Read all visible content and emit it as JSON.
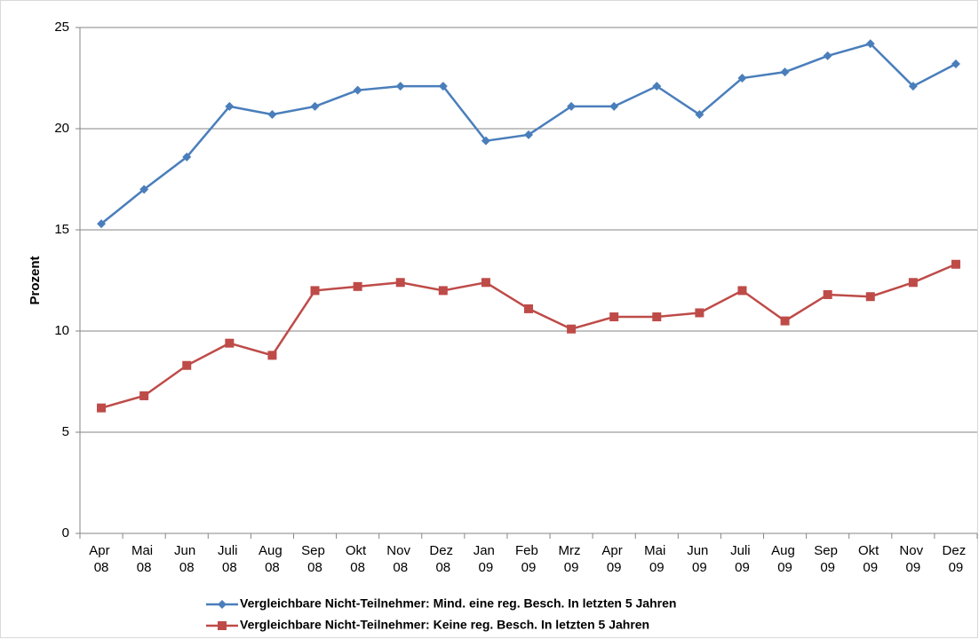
{
  "chart_data": {
    "type": "line",
    "categories": [
      "Apr 08",
      "Mai 08",
      "Jun 08",
      "Juli 08",
      "Aug 08",
      "Sep 08",
      "Okt 08",
      "Nov 08",
      "Dez 08",
      "Jan 09",
      "Feb 09",
      "Mrz 09",
      "Apr 09",
      "Mai 09",
      "Jun 09",
      "Juli 09",
      "Aug 09",
      "Sep 09",
      "Okt 09",
      "Nov 09",
      "Dez 09"
    ],
    "y_label": "Prozent",
    "ylim": [
      0,
      25
    ],
    "yticks": [
      0,
      5,
      10,
      15,
      20,
      25
    ],
    "grid": true,
    "legend": "bottom",
    "series": [
      {
        "name": "Vergleichbare Nicht-Teilnehmer: Mind. eine reg. Besch. In letzten 5 Jahren",
        "color": "#4a7ebb",
        "marker": "diamond",
        "values": [
          15.3,
          17.0,
          18.6,
          21.1,
          20.7,
          21.1,
          21.9,
          22.1,
          22.1,
          19.4,
          19.7,
          21.1,
          21.1,
          22.1,
          20.7,
          22.5,
          22.8,
          23.6,
          24.2,
          22.1,
          23.2
        ]
      },
      {
        "name": "Vergleichbare Nicht-Teilnehmer: Keine reg. Besch. In letzten 5 Jahren",
        "color": "#be4b48",
        "marker": "square",
        "values": [
          6.2,
          6.8,
          8.3,
          9.4,
          8.8,
          12.0,
          12.2,
          12.4,
          12.0,
          12.4,
          11.1,
          10.1,
          10.7,
          10.7,
          10.9,
          12.0,
          10.5,
          11.8,
          11.7,
          12.4,
          13.3
        ]
      }
    ]
  }
}
